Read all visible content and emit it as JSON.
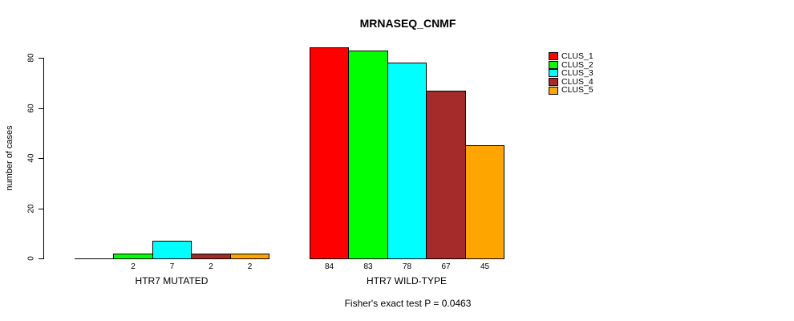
{
  "title": "MRNASEQ_CNMF",
  "subtitle": "Fisher's exact test P = 0.0463",
  "y_axis": {
    "label": "number of cases",
    "ticks": [
      0,
      20,
      40,
      60,
      80
    ]
  },
  "legend": {
    "position": "right",
    "items": [
      {
        "label": "CLUS_1",
        "color": "#FF0000"
      },
      {
        "label": "CLUS_2",
        "color": "#00FF00"
      },
      {
        "label": "CLUS_3",
        "color": "#00FFFF"
      },
      {
        "label": "CLUS_4",
        "color": "#A52A2A"
      },
      {
        "label": "CLUS_5",
        "color": "#FFA500"
      }
    ]
  },
  "chart_data": {
    "type": "bar",
    "title": "MRNASEQ_CNMF",
    "xlabel": "",
    "ylabel": "number of cases",
    "ylim": [
      0,
      80
    ],
    "yticks": [
      0,
      20,
      40,
      60,
      80
    ],
    "grid": false,
    "legend_position": "right",
    "categories": [
      "HTR7 MUTATED",
      "HTR7 WILD-TYPE"
    ],
    "series": [
      {
        "name": "CLUS_1",
        "color": "#FF0000",
        "values": [
          0,
          84
        ]
      },
      {
        "name": "CLUS_2",
        "color": "#00FF00",
        "values": [
          2,
          83
        ]
      },
      {
        "name": "CLUS_3",
        "color": "#00FFFF",
        "values": [
          7,
          78
        ]
      },
      {
        "name": "CLUS_4",
        "color": "#A52A2A",
        "values": [
          2,
          67
        ]
      },
      {
        "name": "CLUS_5",
        "color": "#FFA500",
        "values": [
          2,
          45
        ]
      }
    ],
    "show_value_labels": true,
    "zero_values_unlabeled": true,
    "annotation": "Fisher's exact test P = 0.0463"
  }
}
